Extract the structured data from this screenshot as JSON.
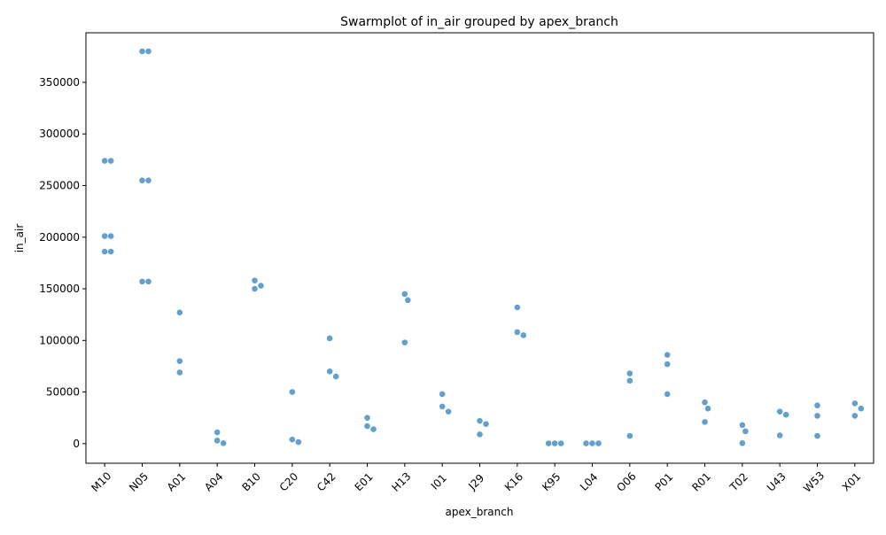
{
  "chart_data": {
    "type": "scatter",
    "subtype": "swarm",
    "title": "Swarmplot of in_air grouped by apex_branch",
    "xlabel": "apex_branch",
    "ylabel": "in_air",
    "ylim": [
      -19000,
      398000
    ],
    "yticks": [
      0,
      50000,
      100000,
      150000,
      200000,
      250000,
      300000,
      350000
    ],
    "ytick_labels": [
      "0",
      "50000",
      "100000",
      "150000",
      "200000",
      "250000",
      "300000",
      "350000"
    ],
    "grid": false,
    "legend": "none",
    "point_color": "#5b9bc8",
    "categories": [
      "M10",
      "N05",
      "A01",
      "A04",
      "B10",
      "C20",
      "C42",
      "E01",
      "H13",
      "I01",
      "J29",
      "K16",
      "K95",
      "L04",
      "O06",
      "P01",
      "R01",
      "T02",
      "U43",
      "W53",
      "X01"
    ],
    "groups": [
      {
        "category": "M10",
        "values": [
          274000,
          274000,
          201000,
          201000,
          186000,
          186000
        ]
      },
      {
        "category": "N05",
        "values": [
          380000,
          380000,
          255000,
          255000,
          157000,
          157000
        ]
      },
      {
        "category": "A01",
        "values": [
          127000,
          80000,
          69000
        ]
      },
      {
        "category": "A04",
        "values": [
          11000,
          3000,
          500
        ]
      },
      {
        "category": "B10",
        "values": [
          158000,
          153000,
          150000
        ]
      },
      {
        "category": "C20",
        "values": [
          50000,
          4000,
          1500
        ]
      },
      {
        "category": "C42",
        "values": [
          102000,
          70000,
          65000
        ]
      },
      {
        "category": "E01",
        "values": [
          25000,
          17000,
          14000
        ]
      },
      {
        "category": "H13",
        "values": [
          145000,
          139000,
          98000
        ]
      },
      {
        "category": "I01",
        "values": [
          48000,
          36000,
          31000
        ]
      },
      {
        "category": "J29",
        "values": [
          22000,
          19000,
          9000
        ]
      },
      {
        "category": "K16",
        "values": [
          132000,
          108000,
          105000
        ]
      },
      {
        "category": "K95",
        "values": [
          300,
          300,
          300
        ]
      },
      {
        "category": "L04",
        "values": [
          300,
          300,
          300
        ]
      },
      {
        "category": "O06",
        "values": [
          68000,
          61000,
          7500
        ]
      },
      {
        "category": "P01",
        "values": [
          86000,
          77000,
          48000
        ]
      },
      {
        "category": "R01",
        "values": [
          40000,
          34000,
          21000
        ]
      },
      {
        "category": "T02",
        "values": [
          18000,
          12000,
          500
        ]
      },
      {
        "category": "U43",
        "values": [
          31000,
          28000,
          8000
        ]
      },
      {
        "category": "W53",
        "values": [
          37000,
          27000,
          7500
        ]
      },
      {
        "category": "X01",
        "values": [
          39000,
          34000,
          27000
        ]
      }
    ]
  }
}
